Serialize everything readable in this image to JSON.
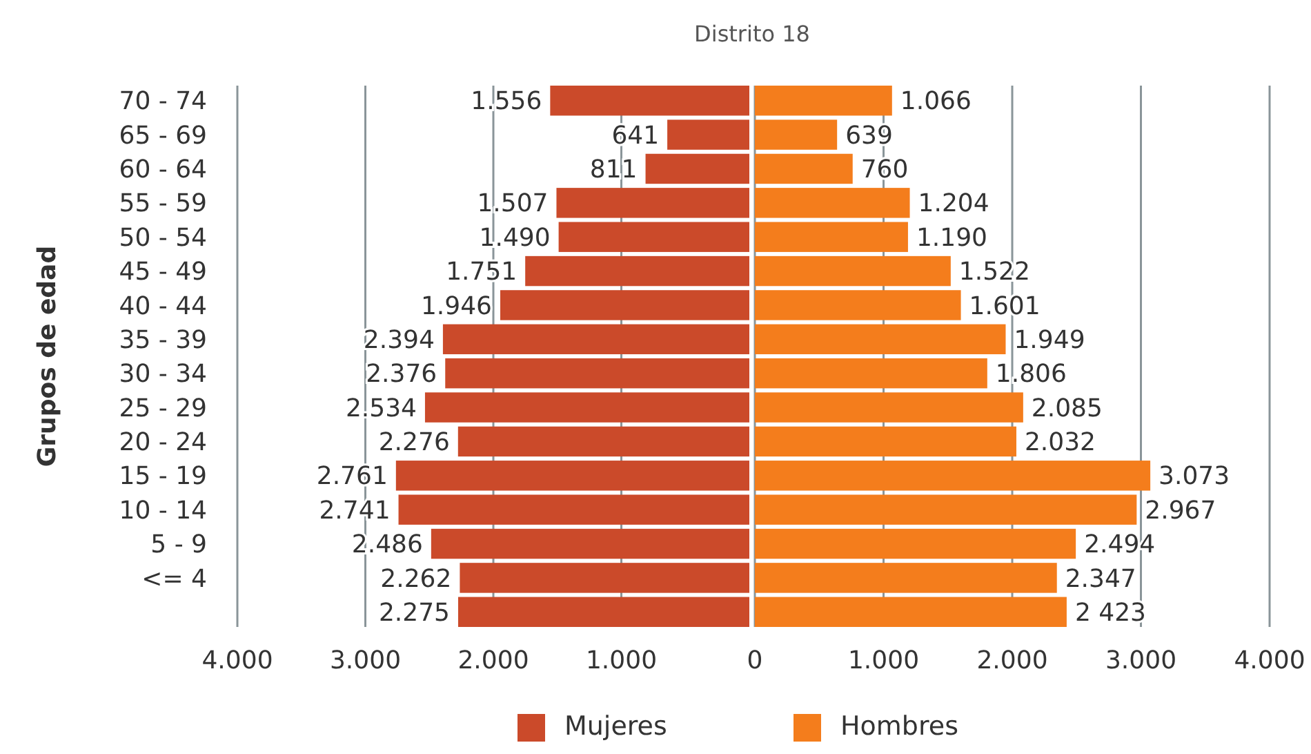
{
  "chart_data": [
    {
      "type": "bar",
      "orientation": "horizontal",
      "title": "Distrito 18",
      "ylabel": "Grupos de edad",
      "categories": [
        "70 - 74",
        "65 - 69",
        "60 - 64",
        "55 - 59",
        "50 - 54",
        "45 - 49",
        "40 - 44",
        "35 - 39",
        "30 - 34",
        "25 - 29",
        "20 - 24",
        "15 - 19",
        "10 - 14",
        "5 - 9",
        "<= 4",
        null
      ],
      "series": [
        {
          "name": "Mujeres",
          "color": "#cb4a2a",
          "values": [
            1556,
            641,
            811,
            1507,
            1490,
            1751,
            1946,
            2394,
            2376,
            2534,
            2276,
            2761,
            2741,
            2486,
            2262,
            2275
          ],
          "value_labels": [
            "1.556",
            "641",
            "811",
            "1.507",
            "1.490",
            "1.751",
            "1.946",
            "2.394",
            "2.376",
            "2.534",
            "2.276",
            "2.761",
            "2.741",
            "2.486",
            "2.262",
            "2.275"
          ]
        }
      ],
      "xlim": [
        4000,
        0
      ],
      "xticks": [
        {
          "value": 4000,
          "label": "4.000"
        },
        {
          "value": 3000,
          "label": "3.000"
        },
        {
          "value": 2000,
          "label": "2.000"
        },
        {
          "value": 1000,
          "label": "1.000"
        }
      ],
      "grid": "x",
      "legend": "bottom"
    },
    {
      "type": "bar",
      "orientation": "horizontal",
      "categories": [
        null,
        null,
        null,
        null,
        null,
        null,
        null,
        null,
        null,
        null,
        null,
        null,
        null,
        null,
        null,
        null
      ],
      "series": [
        {
          "name": "Hombres",
          "color": "#f47d1c",
          "values": [
            1066,
            639,
            760,
            1204,
            1190,
            1522,
            1601,
            1949,
            1806,
            2085,
            2032,
            3073,
            2967,
            2494,
            2347,
            2423
          ],
          "value_labels": [
            "1.066",
            "639",
            "760",
            "1.204",
            "1.190",
            "1.522",
            "1.601",
            "1.949",
            "1.806",
            "2.085",
            "2.032",
            "3.073",
            "2.967",
            "2.494",
            "2.347",
            "2 423"
          ]
        }
      ],
      "xlim": [
        0,
        4000
      ],
      "xticks": [
        0,
        {
          "value": 1000,
          "label": "1.000"
        },
        {
          "value": 2000,
          "label": "2.000"
        },
        {
          "value": 3000,
          "label": "3.000"
        },
        {
          "value": 4000,
          "label": "4.000"
        }
      ],
      "grid": "x",
      "legend": "bottom",
      "tick_labels": "x"
    }
  ]
}
